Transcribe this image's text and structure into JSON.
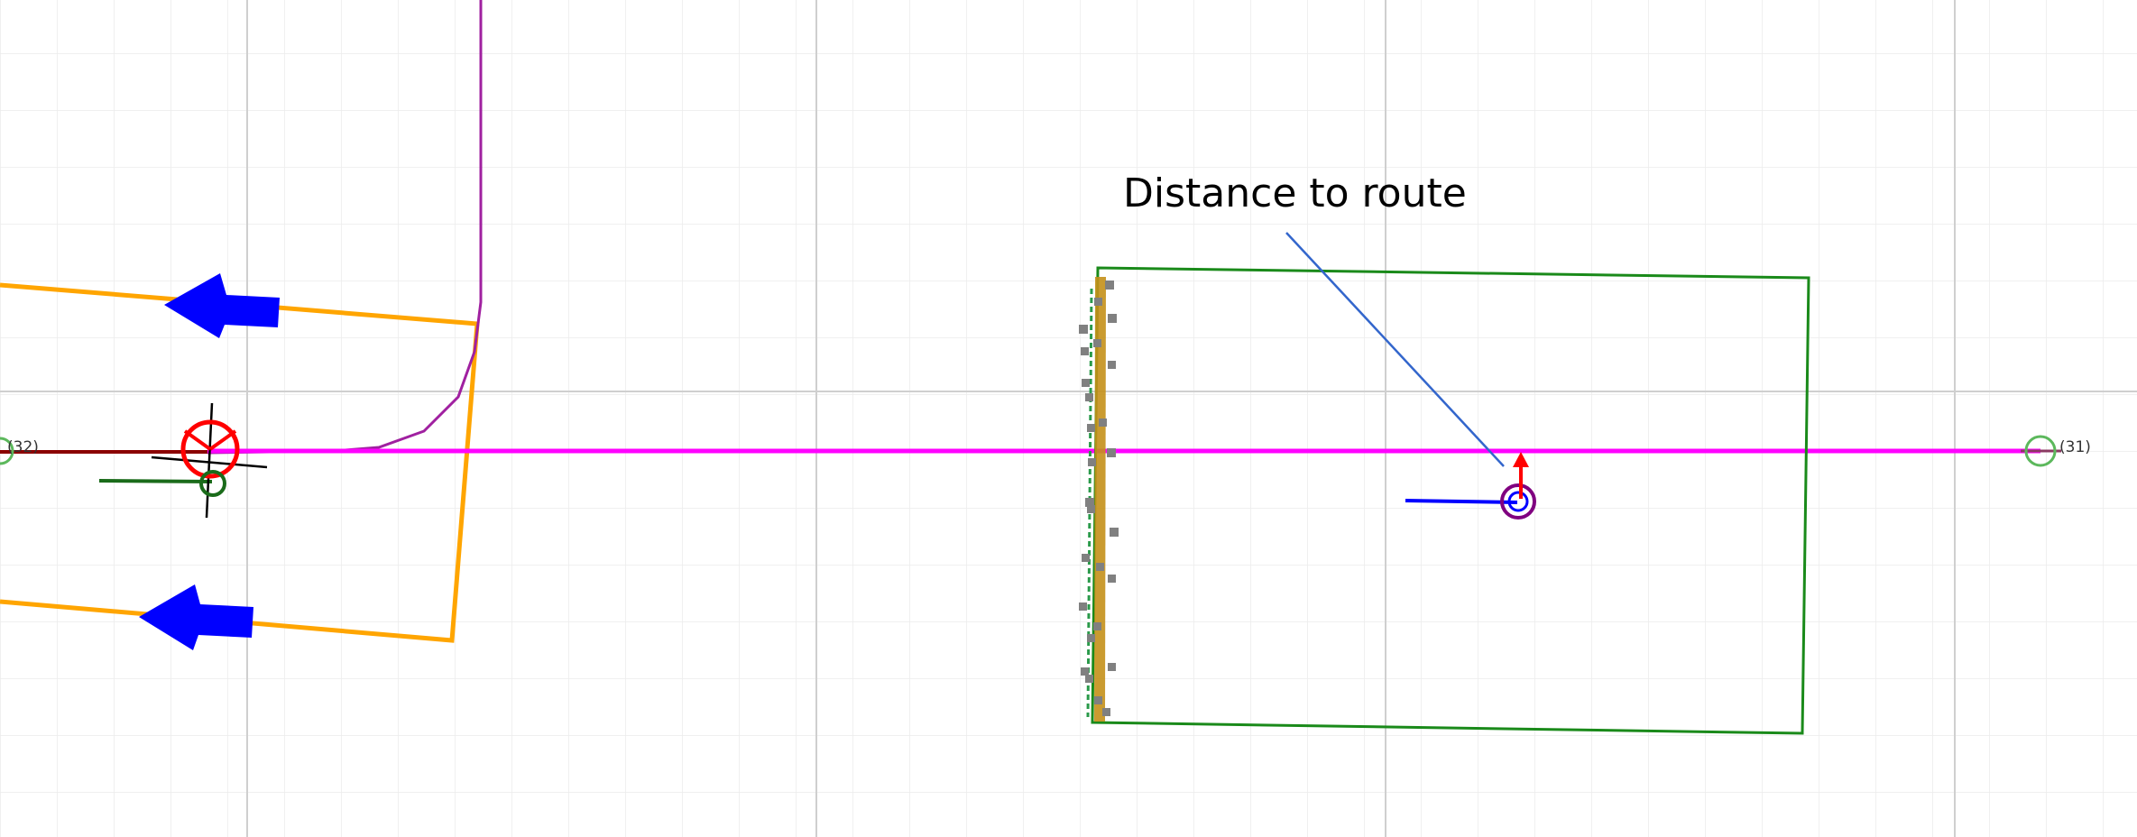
{
  "annotation": {
    "label": "Distance to route"
  },
  "nodes": [
    {
      "id": "node-32",
      "label": "(32)"
    },
    {
      "id": "node-31",
      "label": "(31)"
    }
  ],
  "colors": {
    "route": "#ff00ff",
    "lane_boundary": "#ffa500",
    "direction_arrow": "#0000ff",
    "object_box": "#1a8a1a",
    "ego_marker": "#ff0000",
    "ego_vehicle": "#800080",
    "distance_indicator": "#ff0000",
    "annotation_leader": "#3366cc",
    "path_curve": "#a020a0",
    "past_route": "#8b0000",
    "node_circle": "#5cb85c",
    "grid_minor": "#ececec",
    "grid_major": "#cfcfcf"
  }
}
